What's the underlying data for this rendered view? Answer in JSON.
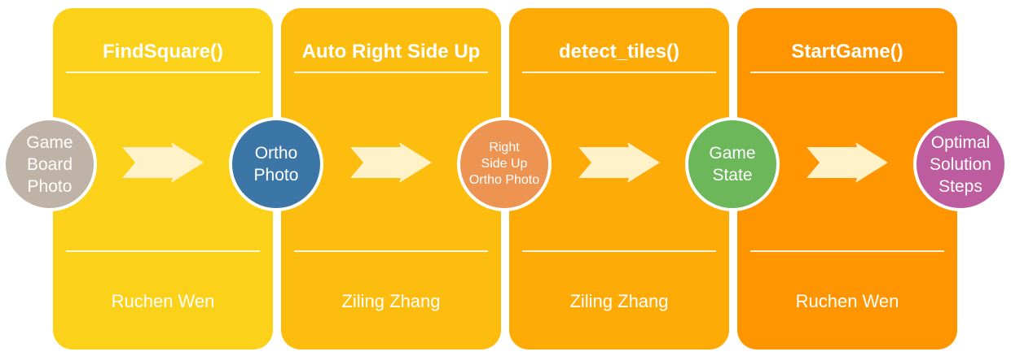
{
  "stages": [
    {
      "title": "FindSquare()",
      "author": "Ruchen Wen",
      "color": "#FCD119"
    },
    {
      "title": "Auto Right Side Up",
      "author": "Ziling Zhang",
      "color": "#FDBD0E"
    },
    {
      "title": "detect_tiles()",
      "author": "Ziling Zhang",
      "color": "#FEAB07"
    },
    {
      "title": "StartGame()",
      "author": "Ruchen Wen",
      "color": "#FF9500"
    }
  ],
  "nodes": [
    {
      "label": "Game\nBoard\nPhoto",
      "color": "#BFB2A6"
    },
    {
      "label": "Ortho\nPhoto",
      "color": "#3C76A6"
    },
    {
      "label": "Right\nSide Up\nOrtho Photo",
      "color": "#EE9452"
    },
    {
      "label": "Game\nState",
      "color": "#6BB75A"
    },
    {
      "label": "Optimal\nSolution\nSteps",
      "color": "#BD5C9E"
    }
  ],
  "arrow_color": "#FFF1C8"
}
